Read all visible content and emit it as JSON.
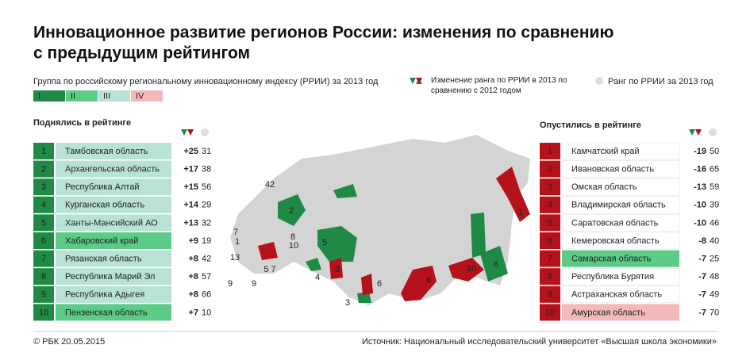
{
  "title": "Инновационное развитие регионов России: изменения по сравнению с предыдущим рейтингом",
  "legend": {
    "group_label": "Группа по российскому региональному инновационному индексу (РРИИ) за 2013 год",
    "groups": [
      "I",
      "II",
      "III",
      "IV"
    ],
    "change_label": "Изменение ранга по РРИИ в 2013 по сравнению с 2012 годом",
    "rank_label": "Ранг по РРИИ за 2013 год"
  },
  "risen": {
    "title": "Поднялись в рейтинге",
    "rows": [
      {
        "rank": 1,
        "name": "Тамбовская область",
        "change": "+25",
        "rank2013": 31,
        "group": "III"
      },
      {
        "rank": 2,
        "name": "Архангельская область",
        "change": "+17",
        "rank2013": 38,
        "group": "III"
      },
      {
        "rank": 3,
        "name": "Республика Алтай",
        "change": "+15",
        "rank2013": 56,
        "group": "III"
      },
      {
        "rank": 4,
        "name": "Курганская область",
        "change": "+14",
        "rank2013": 29,
        "group": "III"
      },
      {
        "rank": 5,
        "name": "Ханты-Мансийский АО",
        "change": "+13",
        "rank2013": 32,
        "group": "III"
      },
      {
        "rank": 6,
        "name": "Хабаровский край",
        "change": "+9",
        "rank2013": 19,
        "group": "II"
      },
      {
        "rank": 7,
        "name": "Рязанская область",
        "change": "+8",
        "rank2013": 42,
        "group": "III"
      },
      {
        "rank": 8,
        "name": "Республика Марий Эл",
        "change": "+8",
        "rank2013": 57,
        "group": "III"
      },
      {
        "rank": 9,
        "name": "Республика Адыгея",
        "change": "+8",
        "rank2013": 66,
        "group": "III"
      },
      {
        "rank": 10,
        "name": "Пензенская область",
        "change": "+7",
        "rank2013": 10,
        "group": "II"
      }
    ]
  },
  "fallen": {
    "title": "Опустились в рейтинге",
    "rows": [
      {
        "rank": 1,
        "name": "Камчатский край",
        "change": "-19",
        "rank2013": 50
      },
      {
        "rank": 2,
        "name": "Ивановская область",
        "change": "-16",
        "rank2013": 65
      },
      {
        "rank": 3,
        "name": "Омская область",
        "change": "-13",
        "rank2013": 59
      },
      {
        "rank": 4,
        "name": "Владимирская область",
        "change": "-10",
        "rank2013": 39
      },
      {
        "rank": 5,
        "name": "Саратовская область",
        "change": "-10",
        "rank2013": 46
      },
      {
        "rank": 6,
        "name": "Кемеровская область",
        "change": "-8",
        "rank2013": 40
      },
      {
        "rank": 7,
        "name": "Самарская область",
        "change": "-7",
        "rank2013": 25,
        "group": "II"
      },
      {
        "rank": 8,
        "name": "Республика Бурятия",
        "change": "-7",
        "rank2013": 48
      },
      {
        "rank": 9,
        "name": "Астраханская область",
        "change": "-7",
        "rank2013": 49
      },
      {
        "rank": 10,
        "name": "Амурская область",
        "change": "-7",
        "rank2013": 70,
        "group": "IV"
      }
    ]
  },
  "map": {
    "labels": [
      {
        "text": "42",
        "side": "fallen"
      },
      {
        "text": "2",
        "side": "risen"
      },
      {
        "text": "7",
        "side": "risen"
      },
      {
        "text": "1",
        "side": "risen"
      },
      {
        "text": "8",
        "side": "risen"
      },
      {
        "text": "10",
        "side": "risen"
      },
      {
        "text": "13",
        "side": "risen"
      },
      {
        "text": "5",
        "side": "risen"
      },
      {
        "text": "4",
        "side": "risen"
      },
      {
        "text": "9",
        "side": "risen"
      },
      {
        "text": "3",
        "side": "risen"
      },
      {
        "text": "9",
        "side": "fallen"
      },
      {
        "text": "5 7",
        "side": "fallen"
      },
      {
        "text": "3",
        "side": "fallen"
      },
      {
        "text": "6",
        "side": "fallen"
      },
      {
        "text": "8",
        "side": "fallen"
      },
      {
        "text": "10",
        "side": "fallen"
      },
      {
        "text": "6",
        "side": "risen"
      },
      {
        "text": "1",
        "side": "fallen"
      }
    ]
  },
  "footer": {
    "copyright": "© РБК 20.05.2015",
    "source": "Источник: Национальный исследовательский университет «Высшая школа экономики»"
  }
}
